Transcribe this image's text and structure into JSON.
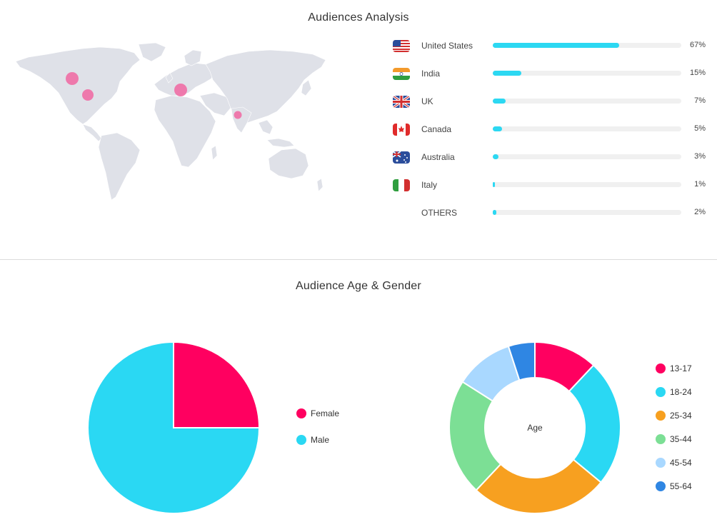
{
  "top_section": {
    "title": "Audiences Analysis",
    "countries": [
      {
        "name": "United States",
        "flag": "us-flag-icon",
        "pct_label": "67%",
        "value": 0.67
      },
      {
        "name": "India",
        "flag": "india-flag-icon",
        "pct_label": "15%",
        "value": 0.15
      },
      {
        "name": "UK",
        "flag": "uk-flag-icon",
        "pct_label": "7%",
        "value": 0.07
      },
      {
        "name": "Canada",
        "flag": "canada-flag-icon",
        "pct_label": "5%",
        "value": 0.05
      },
      {
        "name": "Australia",
        "flag": "australia-flag-icon",
        "pct_label": "3%",
        "value": 0.03
      },
      {
        "name": "Italy",
        "flag": "italy-flag-icon",
        "pct_label": "1%",
        "value": 0.01
      },
      {
        "name": "OTHERS",
        "flag": "",
        "pct_label": "2%",
        "value": 0.02
      }
    ],
    "map_markers": [
      {
        "region": "Canada",
        "size": "medium"
      },
      {
        "region": "United States",
        "size": "medium"
      },
      {
        "region": "Europe",
        "size": "medium"
      },
      {
        "region": "India",
        "size": "small"
      }
    ]
  },
  "bottom_section": {
    "title": "Audience Age & Gender"
  },
  "chart_data": [
    {
      "type": "pie",
      "title": "",
      "categories": [
        "Female",
        "Male"
      ],
      "values": [
        25,
        75
      ],
      "colors": [
        "#ff0060",
        "#2ad8f3"
      ]
    },
    {
      "type": "pie",
      "variant": "donut",
      "center_label": "Age",
      "categories": [
        "13-17",
        "18-24",
        "25-34",
        "35-44",
        "45-54",
        "55-64"
      ],
      "values": [
        12,
        24,
        26,
        22,
        11,
        5
      ],
      "colors": [
        "#ff0060",
        "#2ad8f3",
        "#f7a020",
        "#7cdf95",
        "#a9d8ff",
        "#2f86e3"
      ]
    }
  ],
  "colors": {
    "bar_fill": "#2cd8f2",
    "bar_track": "#f0f0f0",
    "map_land": "#dfe1e8",
    "marker": "#f06ea5"
  }
}
